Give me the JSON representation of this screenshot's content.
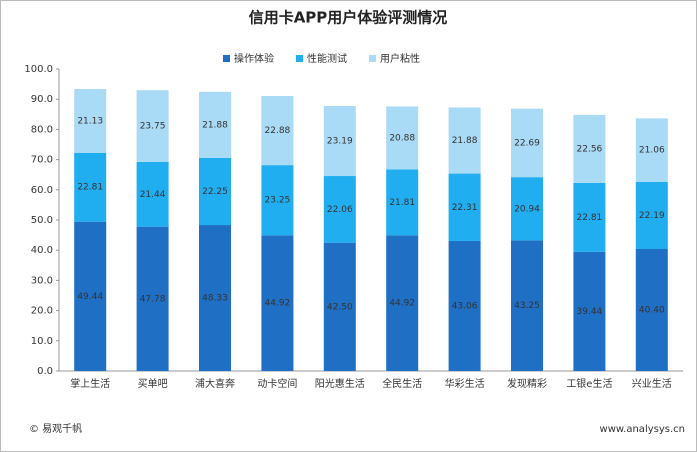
{
  "chart_data": {
    "type": "bar",
    "stacked": true,
    "title": "信用卡APP用户体验评测情况",
    "categories": [
      "掌上生活",
      "买单吧",
      "浦大喜奔",
      "动卡空间",
      "阳光惠生活",
      "全民生活",
      "华彩生活",
      "发现精彩",
      "工银e生活",
      "兴业生活"
    ],
    "series": [
      {
        "name": "操作体验",
        "color": "#1f6fc5",
        "values": [
          49.44,
          47.78,
          48.33,
          44.92,
          42.5,
          44.92,
          43.06,
          43.25,
          39.44,
          40.4
        ],
        "value_labels": [
          "49.44",
          "47.78",
          "48.33",
          "44.92",
          "42.50",
          "44.92",
          "43.06",
          "43.25",
          "39.44",
          "40.40"
        ]
      },
      {
        "name": "性能测试",
        "color": "#21aef0",
        "values": [
          22.81,
          21.44,
          22.25,
          23.25,
          22.06,
          21.81,
          22.31,
          20.94,
          22.81,
          22.19
        ],
        "value_labels": [
          "22.81",
          "21.44",
          "22.25",
          "23.25",
          "22.06",
          "21.81",
          "22.31",
          "20.94",
          "22.81",
          "22.19"
        ]
      },
      {
        "name": "用户粘性",
        "color": "#a9daf6",
        "values": [
          21.13,
          23.75,
          21.88,
          22.88,
          23.19,
          20.88,
          21.88,
          22.69,
          22.56,
          21.06
        ],
        "value_labels": [
          "21.13",
          "23.75",
          "21.88",
          "22.88",
          "23.19",
          "20.88",
          "21.88",
          "22.69",
          "22.56",
          "21.06"
        ]
      }
    ],
    "ylim": [
      0,
      100
    ],
    "yticks": [
      {
        "value": 0,
        "label": "0.0"
      },
      {
        "value": 10,
        "label": "10.0"
      },
      {
        "value": 20,
        "label": "20.0"
      },
      {
        "value": 30,
        "label": "30.0"
      },
      {
        "value": 40,
        "label": "40.0"
      },
      {
        "value": 50,
        "label": "50.0"
      },
      {
        "value": 60,
        "label": "60.0"
      },
      {
        "value": 70,
        "label": "70.0"
      },
      {
        "value": 80,
        "label": "80.0"
      },
      {
        "value": 90,
        "label": "90.0"
      },
      {
        "value": 100,
        "label": "100.0"
      }
    ],
    "legend": "top",
    "source": "© 易观千帆",
    "website": "www.analysys.cn"
  }
}
